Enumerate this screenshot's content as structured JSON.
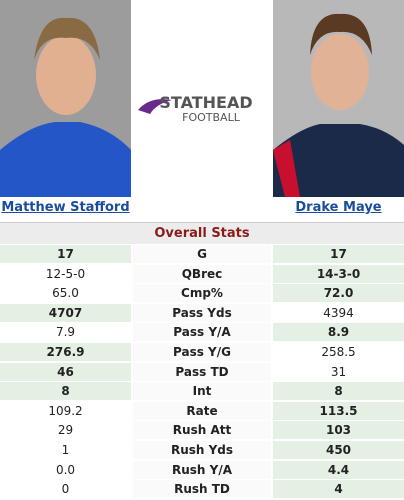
{
  "header": {
    "left_player": "Matthew Stafford",
    "right_player": "Drake Maye",
    "logo_top": "STATHEAD",
    "logo_bottom": "FOOTBALL"
  },
  "table": {
    "title": "Overall Stats",
    "rows": [
      {
        "left": "17",
        "stat": "G",
        "right": "17",
        "left_bold": true,
        "right_bold": true
      },
      {
        "left": "12-5-0",
        "stat": "QBrec",
        "right": "14-3-0",
        "left_bold": false,
        "right_bold": true
      },
      {
        "left": "65.0",
        "stat": "Cmp%",
        "right": "72.0",
        "left_bold": false,
        "right_bold": true
      },
      {
        "left": "4707",
        "stat": "Pass Yds",
        "right": "4394",
        "left_bold": true,
        "right_bold": false
      },
      {
        "left": "7.9",
        "stat": "Pass Y/A",
        "right": "8.9",
        "left_bold": false,
        "right_bold": true
      },
      {
        "left": "276.9",
        "stat": "Pass Y/G",
        "right": "258.5",
        "left_bold": true,
        "right_bold": false
      },
      {
        "left": "46",
        "stat": "Pass TD",
        "right": "31",
        "left_bold": true,
        "right_bold": false
      },
      {
        "left": "8",
        "stat": "Int",
        "right": "8",
        "left_bold": true,
        "right_bold": true
      },
      {
        "left": "109.2",
        "stat": "Rate",
        "right": "113.5",
        "left_bold": false,
        "right_bold": true
      },
      {
        "left": "29",
        "stat": "Rush Att",
        "right": "103",
        "left_bold": false,
        "right_bold": true
      },
      {
        "left": "1",
        "stat": "Rush Yds",
        "right": "450",
        "left_bold": false,
        "right_bold": true
      },
      {
        "left": "0.0",
        "stat": "Rush Y/A",
        "right": "4.4",
        "left_bold": false,
        "right_bold": true
      },
      {
        "left": "0",
        "stat": "Rush TD",
        "right": "4",
        "left_bold": false,
        "right_bold": true
      }
    ]
  }
}
